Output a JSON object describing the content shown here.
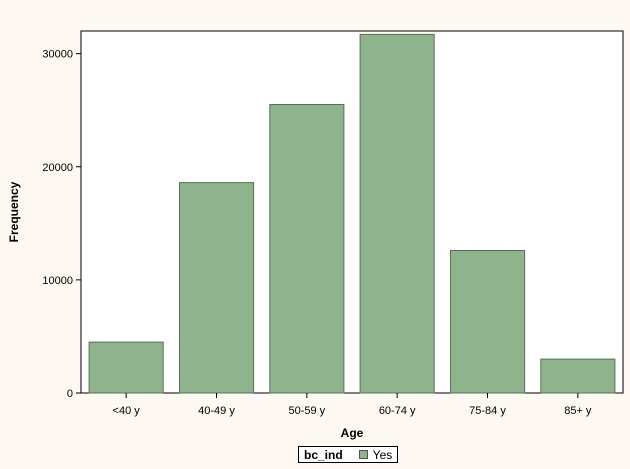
{
  "chart_data": {
    "type": "bar",
    "categories": [
      "<40 y",
      "40-49 y",
      "50-59 y",
      "60-74 y",
      "75-84 y",
      "85+ y"
    ],
    "values": [
      4500,
      18600,
      25500,
      31700,
      12600,
      3000
    ],
    "xlabel": "Age",
    "ylabel": "Frequency",
    "ylim": [
      0,
      32000
    ],
    "yticks": [
      0,
      10000,
      20000,
      30000
    ],
    "grid": false,
    "legend": {
      "title": "bc_ind",
      "entries": [
        {
          "label": "Yes",
          "color": "#8fb38d"
        }
      ],
      "position": "bottom-center"
    },
    "bar_color": "#8fb38d",
    "bar_border_color": "#5a6f57"
  }
}
